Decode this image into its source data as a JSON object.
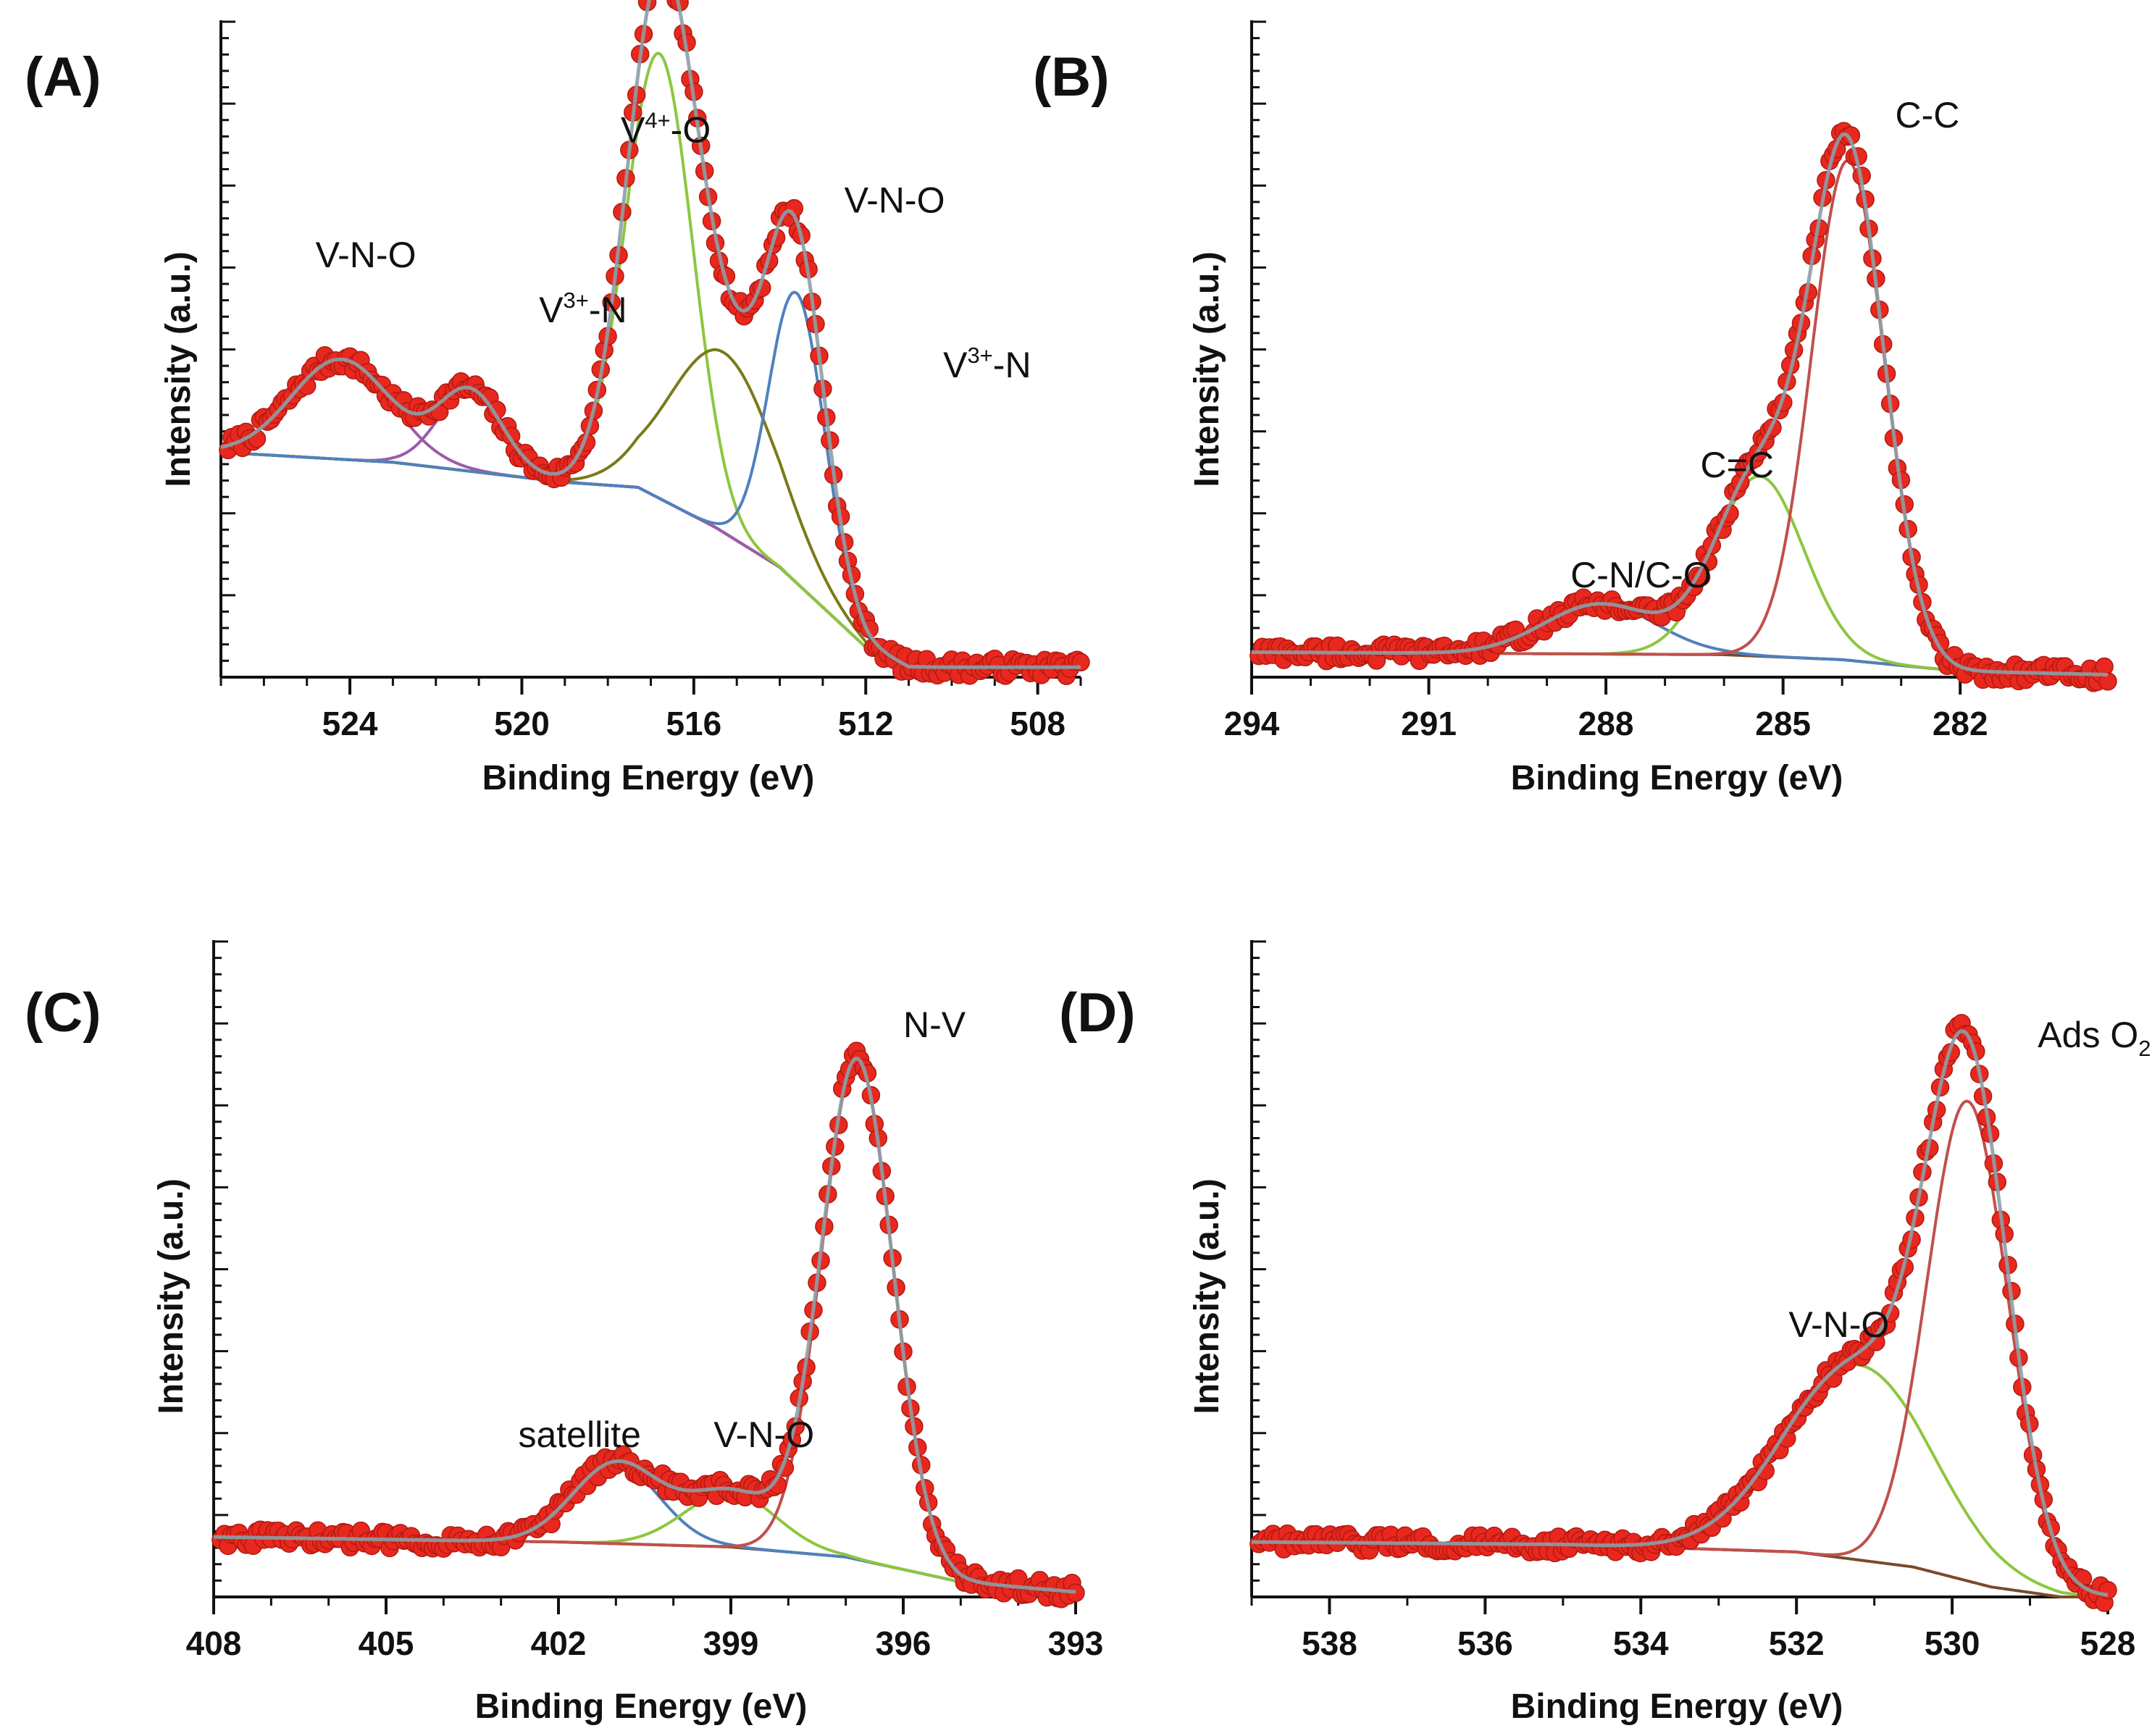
{
  "chart_data": [
    {
      "type": "scatter",
      "panel": "(A)",
      "xlabel": "Binding Energy (eV)",
      "ylabel": "Intensity (a.u.)",
      "xlim": [
        527,
        507
      ],
      "xticks": [
        524,
        520,
        516,
        512,
        508
      ],
      "x_reversed": true,
      "ylim": [
        0,
        1.3
      ],
      "y_ticks_labeled": false,
      "background": {
        "points": [
          [
            527,
            0.45
          ],
          [
            523,
            0.43
          ],
          [
            519,
            0.39
          ],
          [
            517.3,
            0.38
          ],
          [
            515.5,
            0.3
          ],
          [
            514,
            0.22
          ],
          [
            512,
            0.06
          ],
          [
            511,
            0.02
          ],
          [
            507,
            0.02
          ]
        ]
      },
      "components": [
        {
          "center": 524.2,
          "height": 0.2,
          "sigma": 1.15,
          "color": "#9b5ca8"
        },
        {
          "center": 521.2,
          "height": 0.16,
          "sigma": 0.75,
          "color": "#9b5ca8"
        },
        {
          "center": 516.8,
          "height": 0.89,
          "sigma": 0.78,
          "color": "#8dc63f"
        },
        {
          "center": 515.3,
          "height": 0.36,
          "sigma": 1.25,
          "color": "#7a7a1a"
        },
        {
          "center": 513.6,
          "height": 0.58,
          "sigma": 0.65,
          "color": "#4f81bd"
        }
      ],
      "envelope_color": "#8c9ea6",
      "data_color": "#e8281e",
      "annotations": [
        {
          "text": "V-N-O",
          "x": 524.8,
          "y": 0.82
        },
        {
          "base": "V",
          "sup": "3+",
          "tail": "-N",
          "x": 519.6,
          "y": 0.71
        },
        {
          "base": "V",
          "sup": "4+",
          "tail": "-O",
          "x": 517.7,
          "y": 1.07
        },
        {
          "text": "V-N-O",
          "x": 512.5,
          "y": 0.93
        },
        {
          "base": "V",
          "sup": "3+",
          "tail": "-N",
          "x": 510.2,
          "y": 0.6
        }
      ]
    },
    {
      "type": "scatter",
      "panel": "(B)",
      "xlabel": "Binding Energy (eV)",
      "ylabel": "Intensity (a.u.)",
      "xlim": [
        294,
        279.5
      ],
      "xticks": [
        294,
        291,
        288,
        285,
        282
      ],
      "x_reversed": true,
      "ylim": [
        0,
        1.3
      ],
      "y_ticks_labeled": false,
      "background": {
        "points": [
          [
            294,
            0.05
          ],
          [
            286,
            0.045
          ],
          [
            284,
            0.035
          ],
          [
            282,
            0.012
          ],
          [
            279.5,
            0.005
          ]
        ]
      },
      "components": [
        {
          "center": 288.1,
          "height": 0.1,
          "sigma": 0.95,
          "color": "#4f81bd"
        },
        {
          "center": 285.4,
          "height": 0.36,
          "sigma": 0.75,
          "color": "#8dc63f"
        },
        {
          "center": 283.9,
          "height": 1.0,
          "sigma": 0.62,
          "color": "#c0504d"
        }
      ],
      "envelope_color": "#8c9ea6",
      "data_color": "#e8281e",
      "annotations": [
        {
          "text": "C-C",
          "x": 283.1,
          "y": 1.1
        },
        {
          "text": "C=C",
          "x": 286.4,
          "y": 0.4
        },
        {
          "text": "C-N/C-O",
          "x": 288.6,
          "y": 0.18
        }
      ]
    },
    {
      "type": "scatter",
      "panel": "(C)",
      "xlabel": "Binding Energy (eV)",
      "ylabel": "Intensity (a.u.)",
      "xlim": [
        408,
        393
      ],
      "xticks": [
        408,
        405,
        402,
        399,
        396,
        393
      ],
      "x_reversed": true,
      "ylim": [
        0,
        1.3
      ],
      "y_ticks_labeled": false,
      "background": {
        "points": [
          [
            408,
            0.12
          ],
          [
            402,
            0.11
          ],
          [
            399,
            0.1
          ],
          [
            397,
            0.08
          ],
          [
            395,
            0.03
          ],
          [
            393,
            0.01
          ]
        ]
      },
      "components": [
        {
          "center": 401.0,
          "height": 0.16,
          "sigma": 0.75,
          "color": "#4f81bd"
        },
        {
          "center": 399.0,
          "height": 0.11,
          "sigma": 0.8,
          "color": "#8dc63f"
        },
        {
          "center": 396.8,
          "height": 1.0,
          "sigma": 0.62,
          "color": "#c0504d"
        }
      ],
      "envelope_color": "#8c9ea6",
      "data_color": "#e8281e",
      "annotations": [
        {
          "text": "N-V",
          "x": 396.0,
          "y": 1.12
        },
        {
          "text": "satellite",
          "x": 402.7,
          "y": 0.3
        },
        {
          "text": "V-N-O",
          "x": 399.3,
          "y": 0.3
        }
      ]
    },
    {
      "type": "scatter",
      "panel": "(D)",
      "xlabel": "Binding Energy (eV)",
      "ylabel": "Intensity (a.u.)",
      "xlim": [
        539,
        528
      ],
      "xticks": [
        538,
        536,
        534,
        532,
        530,
        528
      ],
      "x_reversed": true,
      "ylim": [
        0,
        1.3
      ],
      "y_ticks_labeled": false,
      "background": {
        "points": [
          [
            539,
            0.11
          ],
          [
            535,
            0.105
          ],
          [
            532,
            0.09
          ],
          [
            530.5,
            0.06
          ],
          [
            529.5,
            0.02
          ],
          [
            528.6,
            0.0
          ]
        ]
      },
      "components": [
        {
          "center": 531.2,
          "height": 0.39,
          "sigma": 0.95,
          "color": "#8dc63f"
        },
        {
          "center": 529.8,
          "height": 0.96,
          "sigma": 0.52,
          "color": "#c0504d"
        }
      ],
      "envelope_color": "#8c9ea6",
      "data_color": "#e8281e",
      "annotations": [
        {
          "base": "Ads O",
          "sub": "2",
          "x": 528.9,
          "y": 1.1
        },
        {
          "text": "V-N-O",
          "x": 532.1,
          "y": 0.52
        }
      ]
    }
  ]
}
